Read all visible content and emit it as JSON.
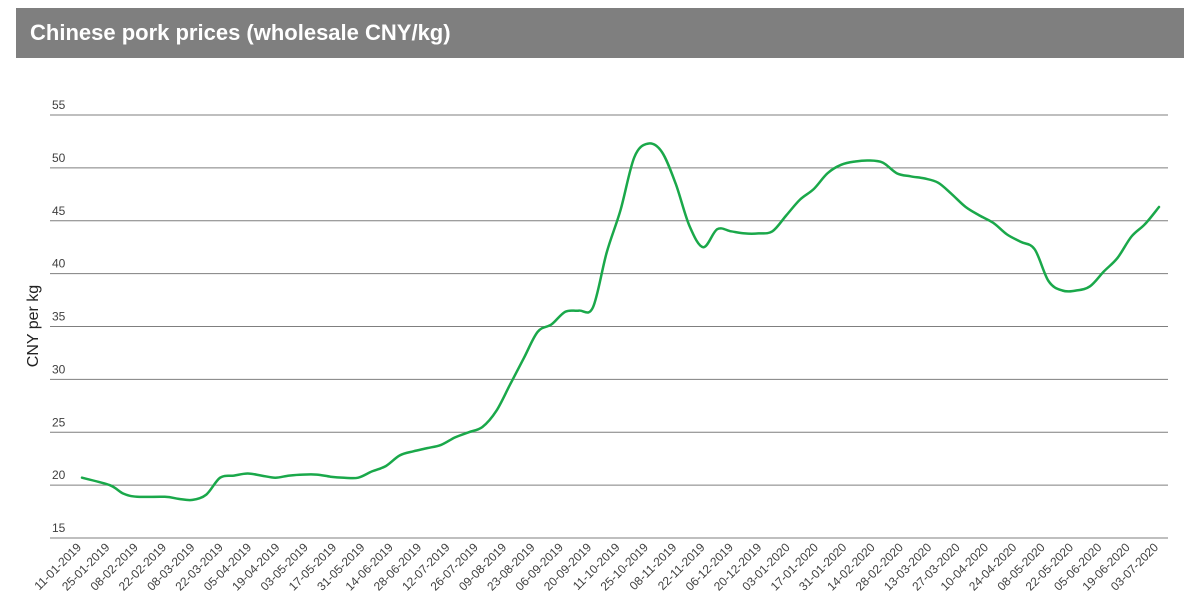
{
  "header": {
    "title": "Chinese pork prices (wholesale CNY/kg)"
  },
  "colors": {
    "title_bar": "#7f7f7f",
    "title_text": "#ffffff",
    "line": "#1aa84a",
    "grid": "#7f7f7f"
  },
  "chart_data": {
    "type": "line",
    "title": "Chinese pork prices (wholesale CNY/kg)",
    "xlabel": "",
    "ylabel": "CNY per kg",
    "ylim": [
      15,
      55
    ],
    "yticks": [
      15,
      20,
      25,
      30,
      35,
      40,
      45,
      50,
      55
    ],
    "grid": true,
    "legend": "none",
    "xlim": [
      "2019-01-11",
      "2020-07-10"
    ],
    "x_tick_labels": [
      "11-01-2019",
      "25-01-2019",
      "08-02-2019",
      "22-02-2019",
      "08-03-2019",
      "22-03-2019",
      "05-04-2019",
      "19-04-2019",
      "03-05-2019",
      "17-05-2019",
      "31-05-2019",
      "14-06-2019",
      "28-06-2019",
      "12-07-2019",
      "26-07-2019",
      "09-08-2019",
      "23-08-2019",
      "06-09-2019",
      "20-09-2019",
      "11-10-2019",
      "25-10-2019",
      "08-11-2019",
      "22-11-2019",
      "06-12-2019",
      "20-12-2019",
      "03-01-2020",
      "17-01-2020",
      "31-01-2020",
      "14-02-2020",
      "28-02-2020",
      "13-03-2020",
      "27-03-2020",
      "10-04-2020",
      "24-04-2020",
      "08-05-2020",
      "22-05-2020",
      "05-06-2020",
      "19-06-2020",
      "03-07-2020"
    ],
    "series": [
      {
        "x": [
          "2019-01-11",
          "2019-01-25",
          "2019-02-01",
          "2019-02-08",
          "2019-02-22",
          "2019-03-01",
          "2019-03-08",
          "2019-03-15",
          "2019-03-22",
          "2019-03-29",
          "2019-04-05",
          "2019-04-12",
          "2019-04-19",
          "2019-04-26",
          "2019-05-03",
          "2019-05-10",
          "2019-05-17",
          "2019-05-24",
          "2019-05-31",
          "2019-06-07",
          "2019-06-14",
          "2019-06-21",
          "2019-06-28",
          "2019-07-05",
          "2019-07-12",
          "2019-07-19",
          "2019-07-26",
          "2019-08-02",
          "2019-08-09",
          "2019-08-16",
          "2019-08-23",
          "2019-08-30",
          "2019-09-06",
          "2019-09-13",
          "2019-09-20",
          "2019-09-27",
          "2019-10-04",
          "2019-10-11",
          "2019-10-18",
          "2019-10-25",
          "2019-11-01",
          "2019-11-08",
          "2019-11-15",
          "2019-11-22",
          "2019-11-29",
          "2019-12-06",
          "2019-12-13",
          "2019-12-20",
          "2019-12-27",
          "2020-01-03",
          "2020-01-10",
          "2020-01-17",
          "2020-01-24",
          "2020-01-31",
          "2020-02-07",
          "2020-02-14",
          "2020-02-21",
          "2020-02-28",
          "2020-03-06",
          "2020-03-13",
          "2020-03-20",
          "2020-03-27",
          "2020-04-03",
          "2020-04-10",
          "2020-04-17",
          "2020-04-24",
          "2020-05-01",
          "2020-05-08",
          "2020-05-15",
          "2020-05-22",
          "2020-05-29",
          "2020-06-05",
          "2020-06-12",
          "2020-06-19",
          "2020-06-26",
          "2020-07-03",
          "2020-07-10"
        ],
        "y": [
          20.7,
          20.0,
          19.2,
          18.9,
          18.9,
          18.7,
          18.6,
          19.1,
          20.7,
          20.9,
          21.1,
          20.9,
          20.7,
          20.9,
          21.0,
          21.0,
          20.8,
          20.7,
          20.7,
          21.3,
          21.8,
          22.8,
          23.2,
          23.5,
          23.8,
          24.5,
          25.0,
          25.5,
          27.0,
          29.5,
          32.0,
          34.5,
          35.2,
          36.4,
          36.5,
          36.8,
          42.0,
          46.0,
          51.0,
          52.3,
          51.5,
          48.5,
          44.5,
          42.5,
          44.2,
          44.0,
          43.8,
          43.8,
          44.0,
          45.5,
          47.0,
          48.0,
          49.5,
          50.3,
          50.6,
          50.7,
          50.5,
          49.5,
          49.2,
          49.0,
          48.6,
          47.5,
          46.3,
          45.5,
          44.8,
          43.7,
          43.0,
          42.3,
          39.3,
          38.4,
          38.4,
          38.8,
          40.2,
          41.5,
          43.5,
          44.7,
          46.3
        ]
      }
    ]
  }
}
